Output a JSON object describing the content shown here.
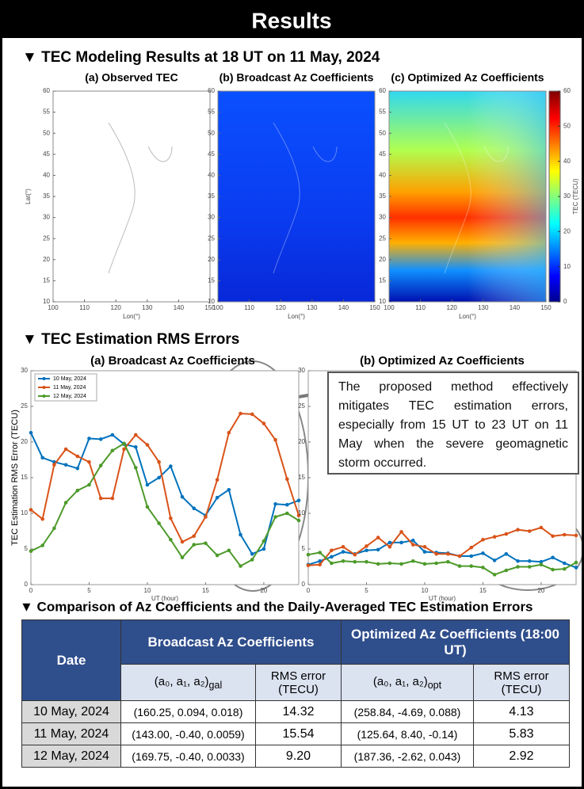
{
  "header": {
    "title": "Results"
  },
  "section1": {
    "title": "▼ TEC Modeling Results at 18 UT on 11 May, 2024",
    "panels": [
      "(a) Observed TEC",
      "(b) Broadcast Az Coefficients",
      "(c) Optimized Az Coefficients"
    ],
    "ylabel": "Lat(°)",
    "xlabel": "Lon(°)",
    "ylim": [
      10,
      60
    ],
    "yticks": [
      10,
      15,
      20,
      25,
      30,
      35,
      40,
      45,
      50,
      55,
      60
    ],
    "xlim": [
      100,
      150
    ],
    "xticks": [
      100,
      110,
      120,
      130,
      140,
      150
    ],
    "colorbar": {
      "label": "TEC (TECU)",
      "lim": [
        0,
        60
      ],
      "ticks": [
        0,
        10,
        20,
        30,
        40,
        50,
        60
      ]
    }
  },
  "section2": {
    "title": "▼ TEC Estimation RMS Errors",
    "annotation": "The proposed method effectively mitigates TEC estimation errors, especially from 15 UT to 23 UT on 11 May when the severe geomagnetic storm occurred."
  },
  "chart_data": [
    {
      "type": "line",
      "title": "(a) Broadcast Az Coefficients",
      "ylabel": "TEC Estimation RMS Error (TECU)",
      "xlabel": "UT (hour)",
      "x": [
        0,
        1,
        2,
        3,
        4,
        5,
        6,
        7,
        8,
        9,
        10,
        11,
        12,
        13,
        14,
        15,
        16,
        17,
        18,
        19,
        20,
        21,
        22,
        23
      ],
      "xlim": [
        0,
        23
      ],
      "xticks": [
        0,
        5,
        10,
        15,
        20
      ],
      "ylim": [
        0,
        30
      ],
      "yticks": [
        0,
        5,
        10,
        15,
        20,
        25,
        30
      ],
      "legend": "upper left",
      "series": [
        {
          "name": "10 May, 2024",
          "color": "#0072bd",
          "values": [
            21.3,
            17.8,
            17.2,
            16.8,
            16.3,
            20.5,
            20.4,
            21,
            19.7,
            19.3,
            14,
            15,
            16.6,
            12.3,
            10.7,
            9.7,
            12.2,
            13.3,
            7,
            4.3,
            5,
            11.3,
            11.2,
            11.8
          ]
        },
        {
          "name": "11 May, 2024",
          "color": "#d95319",
          "values": [
            10.5,
            9.2,
            16.8,
            19,
            18,
            17.2,
            12.1,
            12.1,
            19,
            21,
            19.6,
            17.2,
            9.3,
            6,
            6.8,
            9.5,
            14.7,
            21.3,
            24,
            23.9,
            22.6,
            20.3,
            14.8,
            9.7
          ]
        },
        {
          "name": "12 May, 2024",
          "color": "#4d9a2a",
          "values": [
            4.7,
            5.5,
            7.9,
            11.5,
            13.2,
            14,
            16.7,
            18.8,
            19.8,
            16.4,
            10.9,
            8.6,
            6.3,
            3.8,
            5.6,
            5.8,
            4.1,
            4.8,
            2.6,
            3.5,
            6.1,
            9.5,
            10,
            9
          ]
        }
      ]
    },
    {
      "type": "line",
      "title": "(b) Optimized Az Coefficients",
      "xlabel": "UT (hour)",
      "x": [
        0,
        1,
        2,
        3,
        4,
        5,
        6,
        7,
        8,
        9,
        10,
        11,
        12,
        13,
        14,
        15,
        16,
        17,
        18,
        19,
        20,
        21,
        22,
        23
      ],
      "xlim": [
        0,
        23
      ],
      "xticks": [
        0,
        5,
        10,
        15,
        20
      ],
      "ylim": [
        0,
        30
      ],
      "yticks": [
        0,
        5,
        10,
        15,
        20,
        25,
        30
      ],
      "series": [
        {
          "name": "10 May, 2024",
          "color": "#0072bd",
          "values": [
            2.8,
            3.3,
            3.9,
            4.6,
            4.3,
            4.8,
            4.9,
            5.9,
            5.9,
            6.2,
            4.6,
            4.5,
            4.4,
            4,
            4,
            4.4,
            3.4,
            4.3,
            3.3,
            3.3,
            3.2,
            3.8,
            3,
            2.4
          ]
        },
        {
          "name": "11 May, 2024",
          "color": "#d95319",
          "values": [
            2.7,
            2.8,
            4.8,
            5.3,
            4.2,
            5.4,
            6.6,
            5.3,
            7.4,
            5.6,
            5.3,
            4.3,
            4.3,
            4,
            5.2,
            6.3,
            6.7,
            7.1,
            7.7,
            7.5,
            8,
            6.8,
            7,
            6.9
          ]
        },
        {
          "name": "12 May, 2024",
          "color": "#4d9a2a",
          "values": [
            4.2,
            4.5,
            3,
            3.3,
            3.2,
            3.2,
            2.9,
            3,
            2.9,
            3.3,
            2.9,
            3,
            3.2,
            2.6,
            2.6,
            2.4,
            1.4,
            2,
            2.5,
            2.5,
            2.8,
            2.1,
            2.2,
            3.1
          ]
        }
      ]
    }
  ],
  "section3": {
    "title": "▼ Comparison of Az Coefficients and the Daily-Averaged TEC Estimation Errors",
    "table": {
      "header": [
        "Date",
        "Broadcast Az Coefficients",
        "Optimized Az Coefficients (18:00 UT)"
      ],
      "subheader": [
        {
          "text": "(a₀, a₁, a₂)",
          "sub": "gal"
        },
        "RMS error (TECU)",
        {
          "text": "(a₀, a₁, a₂)",
          "sub": "opt"
        },
        "RMS error (TECU)"
      ],
      "rows": [
        [
          "10 May, 2024",
          "(160.25, 0.094, 0.018)",
          "14.32",
          "(258.84, -4.69, 0.088)",
          "4.13"
        ],
        [
          "11 May, 2024",
          "(143.00, -0.40, 0.0059)",
          "15.54",
          "(125.64, 8.40, -0.14)",
          "5.83"
        ],
        [
          "12 May, 2024",
          "(169.75, -0.40, 0.0033)",
          "9.20",
          "(187.36, -2.62, 0.043)",
          "2.92"
        ]
      ]
    }
  }
}
